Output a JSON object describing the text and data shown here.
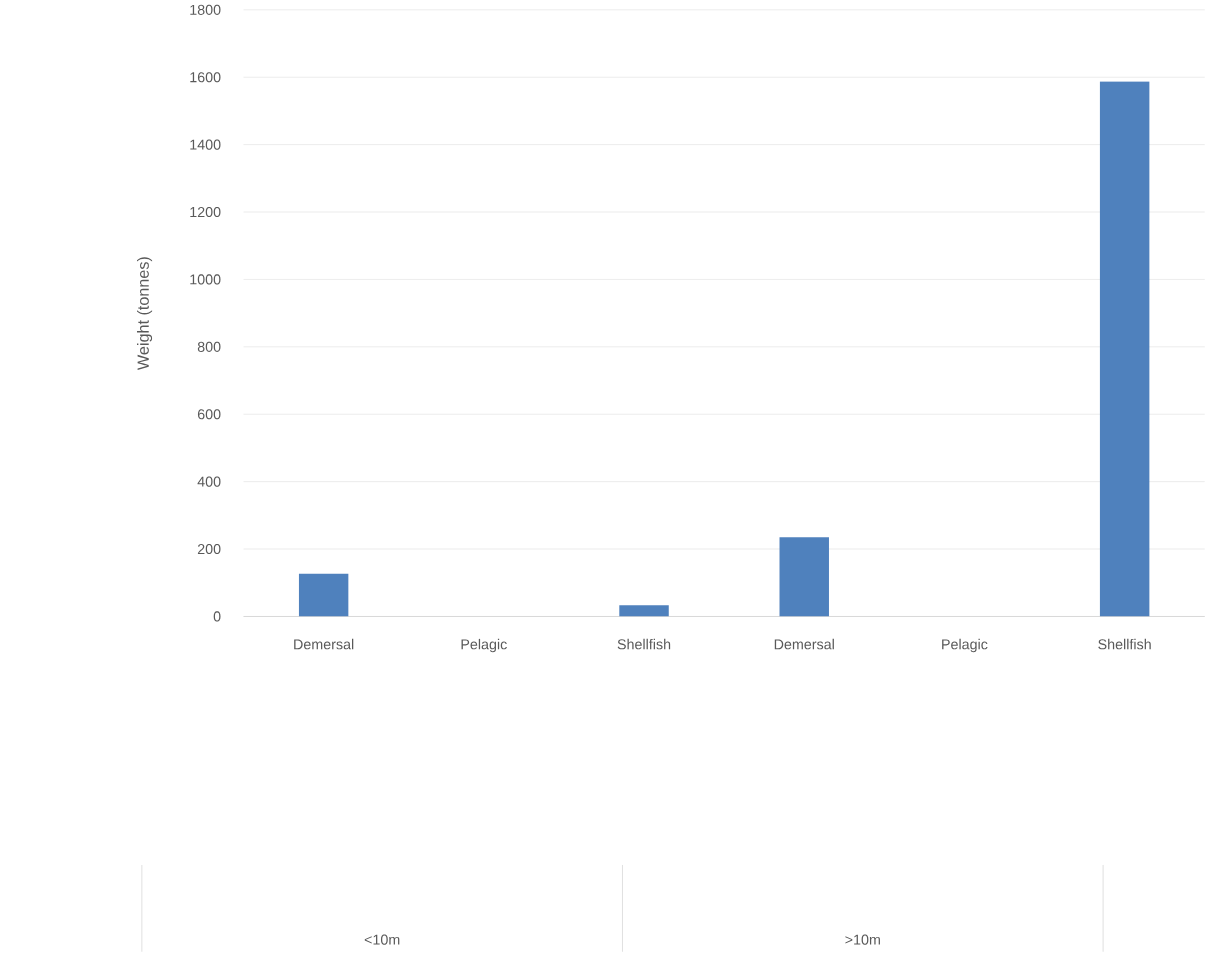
{
  "chart_data": {
    "type": "bar",
    "ylabel": "Weight (tonnes)",
    "categories": [
      "Demersal",
      "Pelagic",
      "Shellfish",
      "Demersal",
      "Pelagic",
      "Shellfish"
    ],
    "values": [
      127,
      0,
      33,
      235,
      0,
      1587
    ],
    "color": "#4f81bd",
    "ylim": [
      0,
      1800
    ],
    "yticks": [
      0,
      200,
      400,
      600,
      800,
      1000,
      1200,
      1400,
      1600,
      1800
    ],
    "grid": "y",
    "annotations": [
      "<10m",
      ">10m"
    ]
  }
}
